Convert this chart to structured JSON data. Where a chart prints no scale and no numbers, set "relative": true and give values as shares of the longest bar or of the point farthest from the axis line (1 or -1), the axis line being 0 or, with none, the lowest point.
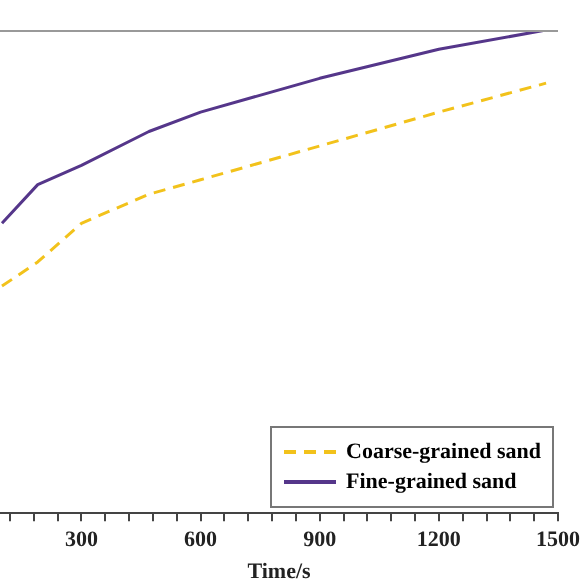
{
  "chart_data": {
    "type": "line",
    "relative": true,
    "xlabel": "Time/s",
    "x": [
      100,
      190,
      300,
      470,
      600,
      900,
      1200,
      1470
    ],
    "series": [
      {
        "name": "Coarse-grained sand",
        "color": "#f2c21b",
        "line_style": "dashed",
        "values": [
          0.47,
          0.52,
          0.6,
          0.66,
          0.69,
          0.76,
          0.83,
          0.89
        ]
      },
      {
        "name": "Fine-grained sand",
        "color": "#55368a",
        "line_style": "solid",
        "values": [
          0.6,
          0.68,
          0.72,
          0.79,
          0.83,
          0.9,
          0.96,
          1
        ]
      }
    ],
    "xlim": [
      95,
      1500
    ],
    "xticks": [
      {
        "value": 120,
        "label": null
      },
      {
        "value": 180,
        "label": null
      },
      {
        "value": 240,
        "label": null
      },
      300,
      {
        "value": 360,
        "label": null
      },
      {
        "value": 420,
        "label": null
      },
      {
        "value": 480,
        "label": null
      },
      {
        "value": 540,
        "label": null
      },
      600,
      {
        "value": 660,
        "label": null
      },
      {
        "value": 720,
        "label": null
      },
      {
        "value": 780,
        "label": null
      },
      {
        "value": 840,
        "label": null
      },
      900,
      {
        "value": 960,
        "label": null
      },
      {
        "value": 1020,
        "label": null
      },
      {
        "value": 1080,
        "label": null
      },
      {
        "value": 1140,
        "label": null
      },
      1200,
      {
        "value": 1260,
        "label": null
      },
      {
        "value": 1320,
        "label": null
      },
      {
        "value": 1380,
        "label": null
      },
      {
        "value": 1440,
        "label": null
      },
      1500
    ],
    "grid": false,
    "legend": "bottom right",
    "marker": "none"
  }
}
